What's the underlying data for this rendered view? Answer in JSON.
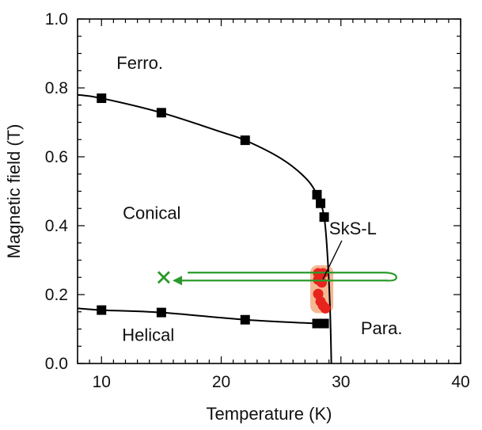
{
  "chart_data": {
    "type": "scatter",
    "title": "",
    "xlabel": "Temperature (K)",
    "ylabel": "Magnetic field (T)",
    "xlim": [
      8,
      40
    ],
    "ylim": [
      0,
      1.0
    ],
    "xticks": [
      10,
      20,
      30,
      40
    ],
    "yticks": [
      0.0,
      0.2,
      0.4,
      0.6,
      0.8,
      1.0
    ],
    "xtick_labels": [
      "10",
      "20",
      "30",
      "40"
    ],
    "ytick_labels": [
      "0.0",
      "0.2",
      "0.4",
      "0.6",
      "0.8",
      "1.0"
    ],
    "grid": false,
    "colors": {
      "data_points": "#000000",
      "boundary_lines": "#000000",
      "skyrmion_region": "#f0a070",
      "skyrmion_points": "#e8231e",
      "field_sweep_path": "#2a9a2a"
    },
    "series": [
      {
        "marker": "square",
        "values": [
          {
            "x": 10,
            "y": 0.77
          },
          {
            "x": 15,
            "y": 0.728
          },
          {
            "x": 22,
            "y": 0.648
          },
          {
            "x": 28.0,
            "y": 0.49
          },
          {
            "x": 28.3,
            "y": 0.465
          },
          {
            "x": 28.6,
            "y": 0.425
          }
        ]
      },
      {
        "marker": "square",
        "values": [
          {
            "x": 10,
            "y": 0.155
          },
          {
            "x": 15,
            "y": 0.148
          },
          {
            "x": 22,
            "y": 0.127
          },
          {
            "x": 28.0,
            "y": 0.116
          },
          {
            "x": 28.6,
            "y": 0.116
          }
        ]
      },
      {
        "marker": "circle",
        "values": [
          {
            "x": 28.1,
            "y": 0.262
          },
          {
            "x": 28.5,
            "y": 0.262
          },
          {
            "x": 28.1,
            "y": 0.243
          },
          {
            "x": 28.4,
            "y": 0.235
          },
          {
            "x": 28.1,
            "y": 0.202
          },
          {
            "x": 28.3,
            "y": 0.18
          },
          {
            "x": 28.5,
            "y": 0.168
          },
          {
            "x": 28.7,
            "y": 0.16
          }
        ]
      }
    ],
    "lines": [
      {
        "name": "upper_boundary",
        "points": [
          [
            8,
            0.78
          ],
          [
            10,
            0.77
          ],
          [
            15,
            0.728
          ],
          [
            20,
            0.672
          ],
          [
            22,
            0.648
          ],
          [
            25,
            0.595
          ],
          [
            27,
            0.54
          ],
          [
            28,
            0.49
          ],
          [
            28.6,
            0.425
          ],
          [
            28.9,
            0.3
          ],
          [
            29.1,
            0.15
          ],
          [
            29.2,
            0.0
          ]
        ]
      },
      {
        "name": "lower_boundary",
        "points": [
          [
            8,
            0.16
          ],
          [
            10,
            0.155
          ],
          [
            15,
            0.148
          ],
          [
            22,
            0.127
          ],
          [
            28,
            0.116
          ],
          [
            28.6,
            0.116
          ]
        ]
      }
    ],
    "annotations": [
      {
        "text": "Ferro.",
        "x": 13.2,
        "y": 0.855
      },
      {
        "text": "Conical",
        "x": 14.2,
        "y": 0.42
      },
      {
        "text": "Helical",
        "x": 13.9,
        "y": 0.065
      },
      {
        "text": "Para.",
        "x": 33.4,
        "y": 0.085
      },
      {
        "text": "SkS-L",
        "x": 31.0,
        "y": 0.375
      }
    ],
    "field_sweep": {
      "start_marker": "x",
      "start": {
        "x": 15.2,
        "y": 0.25
      },
      "from_T": 34.3,
      "to_T": 16.2,
      "field": 0.25
    }
  }
}
